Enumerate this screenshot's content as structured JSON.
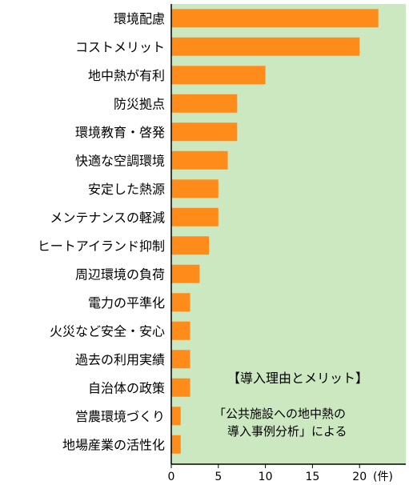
{
  "chart_data": {
    "type": "bar",
    "orientation": "horizontal",
    "categories": [
      "環境配慮",
      "コストメリット",
      "地中熱が有利",
      "防災拠点",
      "環境教育・啓発",
      "快適な空調環境",
      "安定した熱源",
      "メンテナンスの軽減",
      "ヒートアイランド抑制",
      "周辺環境の負荷",
      "電力の平準化",
      "火災など安全・安心",
      "過去の利用実績",
      "自治体の政策",
      "営農環境づくり",
      "地場産業の活性化"
    ],
    "values": [
      22,
      20,
      10,
      7,
      7,
      6,
      5,
      5,
      4,
      3,
      2,
      2,
      2,
      2,
      1,
      1
    ],
    "xlim": [
      0,
      25
    ],
    "x_ticks": [
      "0",
      "5",
      "10",
      "15",
      "20"
    ],
    "x_unit": "(件)",
    "grid": false,
    "colors": {
      "bar": "#ff8c1a",
      "plot_bg": "#cce8c0",
      "axis": "#000000"
    },
    "annotation": {
      "title": "【導入理由とメリット】",
      "source_line1": "「公共施設への地中熱の",
      "source_line2": "導入事例分析」による"
    }
  }
}
